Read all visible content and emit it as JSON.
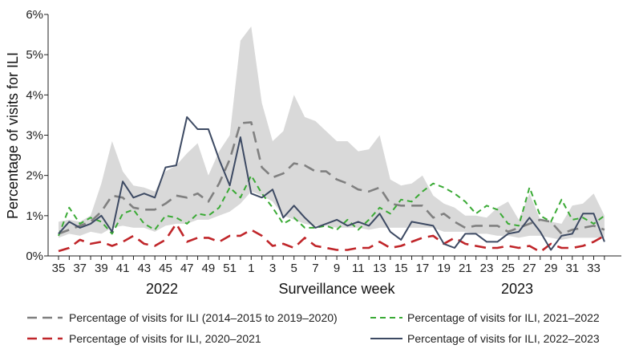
{
  "chart_data": {
    "type": "line",
    "title": "",
    "xlabel": "Surveillance week",
    "ylabel": "Percentage of visits for ILI",
    "ylim": [
      0,
      6
    ],
    "y_ticks": [
      "0%",
      "1%",
      "2%",
      "3%",
      "4%",
      "5%",
      "6%"
    ],
    "weeks": [
      35,
      36,
      37,
      38,
      39,
      40,
      41,
      42,
      43,
      44,
      45,
      46,
      47,
      48,
      49,
      50,
      51,
      52,
      1,
      2,
      3,
      4,
      5,
      6,
      7,
      8,
      9,
      10,
      11,
      12,
      13,
      14,
      15,
      16,
      17,
      18,
      19,
      20,
      21,
      22,
      23,
      24,
      25,
      26,
      27,
      28,
      29,
      30,
      31,
      32,
      33,
      34
    ],
    "x_tick_labels": [
      "35",
      "37",
      "39",
      "41",
      "43",
      "45",
      "47",
      "49",
      "51",
      "1",
      "3",
      "5",
      "7",
      "9",
      "11",
      "13",
      "15",
      "17",
      "19",
      "21",
      "23",
      "25",
      "27",
      "29",
      "31",
      "33"
    ],
    "year_labels": [
      "2022",
      "2023"
    ],
    "band": {
      "name": "Range (2014–2015 to 2019–2020)",
      "low": [
        0.45,
        0.55,
        0.5,
        0.6,
        0.55,
        0.7,
        0.75,
        0.7,
        0.7,
        0.6,
        0.75,
        0.8,
        0.8,
        0.9,
        0.9,
        1.0,
        1.1,
        1.3,
        1.6,
        1.5,
        1.35,
        1.0,
        0.9,
        0.8,
        0.75,
        0.75,
        0.7,
        0.7,
        0.7,
        0.65,
        0.7,
        0.7,
        0.7,
        0.7,
        0.7,
        0.7,
        0.6,
        0.6,
        0.6,
        0.55,
        0.55,
        0.5,
        0.5,
        0.45,
        0.5,
        0.5,
        0.45,
        0.4,
        0.45,
        0.45,
        0.45,
        0.45
      ],
      "high": [
        0.85,
        0.9,
        0.85,
        1.0,
        1.8,
        2.85,
        2.1,
        1.75,
        1.7,
        1.6,
        2.1,
        2.25,
        2.55,
        2.8,
        2.0,
        2.6,
        3.0,
        5.35,
        5.7,
        3.8,
        2.85,
        3.1,
        4.0,
        3.45,
        3.35,
        3.1,
        2.85,
        2.85,
        2.6,
        2.65,
        3.0,
        1.9,
        1.75,
        1.8,
        2.0,
        1.5,
        1.3,
        1.2,
        1.0,
        1.0,
        0.95,
        1.2,
        1.35,
        0.9,
        1.55,
        0.9,
        0.85,
        0.8,
        1.25,
        1.3,
        1.55,
        1.0
      ]
    },
    "series": [
      {
        "name": "Percentage of visits for ILI (2014–2015 to 2019–2020)",
        "color": "#808080",
        "dash": "long-dash",
        "values": [
          0.55,
          0.65,
          0.75,
          0.85,
          1.1,
          1.5,
          1.45,
          1.2,
          1.15,
          1.15,
          1.3,
          1.5,
          1.45,
          1.55,
          1.35,
          1.8,
          2.4,
          3.3,
          3.32,
          2.2,
          1.95,
          2.05,
          2.3,
          2.25,
          2.1,
          2.1,
          1.9,
          1.8,
          1.65,
          1.6,
          1.7,
          1.3,
          1.25,
          1.25,
          1.25,
          0.95,
          1.05,
          0.85,
          0.7,
          0.75,
          0.75,
          0.75,
          0.6,
          0.7,
          0.8,
          0.9,
          0.85,
          0.55,
          0.65,
          0.7,
          0.75,
          0.65
        ]
      },
      {
        "name": "Percentage of visits for ILI, 2021–2022",
        "color": "#3aaa35",
        "dash": "dash",
        "values": [
          0.5,
          1.2,
          0.8,
          0.95,
          0.85,
          0.55,
          1.05,
          1.15,
          0.8,
          0.65,
          1.0,
          0.95,
          0.8,
          1.05,
          1.0,
          1.2,
          1.7,
          1.45,
          2.0,
          1.55,
          1.2,
          0.8,
          0.95,
          0.7,
          0.7,
          0.75,
          0.65,
          0.9,
          0.65,
          0.9,
          1.2,
          1.05,
          1.4,
          1.35,
          1.6,
          1.8,
          1.7,
          1.55,
          1.35,
          1.05,
          1.25,
          1.15,
          0.8,
          0.75,
          1.7,
          1.0,
          0.85,
          1.4,
          0.9,
          0.95,
          0.8,
          1.0
        ]
      },
      {
        "name": "Percentage of visits for ILI, 2020–2021",
        "color": "#c0262a",
        "dash": "long-dash",
        "values": [
          0.12,
          0.2,
          0.4,
          0.3,
          0.35,
          0.25,
          0.35,
          0.5,
          0.3,
          0.25,
          0.4,
          0.8,
          0.35,
          0.45,
          0.45,
          0.35,
          0.5,
          0.5,
          0.65,
          0.5,
          0.25,
          0.3,
          0.2,
          0.45,
          0.25,
          0.2,
          0.15,
          0.15,
          0.2,
          0.2,
          0.35,
          0.2,
          0.25,
          0.35,
          0.45,
          0.5,
          0.3,
          0.45,
          0.3,
          0.25,
          0.2,
          0.2,
          0.25,
          0.2,
          0.25,
          0.1,
          0.3,
          0.2,
          0.2,
          0.25,
          0.35,
          0.5
        ]
      },
      {
        "name": "Percentage of visits for ILI, 2022–2023",
        "color": "#3d4a63",
        "dash": "solid",
        "values": [
          0.55,
          0.85,
          0.7,
          0.8,
          1.0,
          0.6,
          1.85,
          1.45,
          1.55,
          1.45,
          2.2,
          2.25,
          3.45,
          3.15,
          3.15,
          2.4,
          1.75,
          2.95,
          1.55,
          1.45,
          1.65,
          0.95,
          1.25,
          0.95,
          0.7,
          0.8,
          0.9,
          0.75,
          0.85,
          0.75,
          1.05,
          0.6,
          0.4,
          0.85,
          0.8,
          0.75,
          0.3,
          0.2,
          0.55,
          0.55,
          0.35,
          0.35,
          0.55,
          0.6,
          0.95,
          0.6,
          0.15,
          0.5,
          0.55,
          1.05,
          1.05,
          0.35
        ]
      }
    ],
    "legend": [
      {
        "label": "Percentage of visits for ILI (2014–2015 to 2019–2020)",
        "color": "#808080",
        "dash": "long-dash"
      },
      {
        "label": "Percentage of visits for ILI, 2021–2022",
        "color": "#3aaa35",
        "dash": "dash"
      },
      {
        "label": "Percentage of visits for ILI, 2020–2021",
        "color": "#c0262a",
        "dash": "long-dash"
      },
      {
        "label": "Percentage of visits for ILI, 2022–2023",
        "color": "#3d4a63",
        "dash": "solid"
      }
    ],
    "band_color": "#d9d9d9",
    "legend_position": "bottom"
  }
}
